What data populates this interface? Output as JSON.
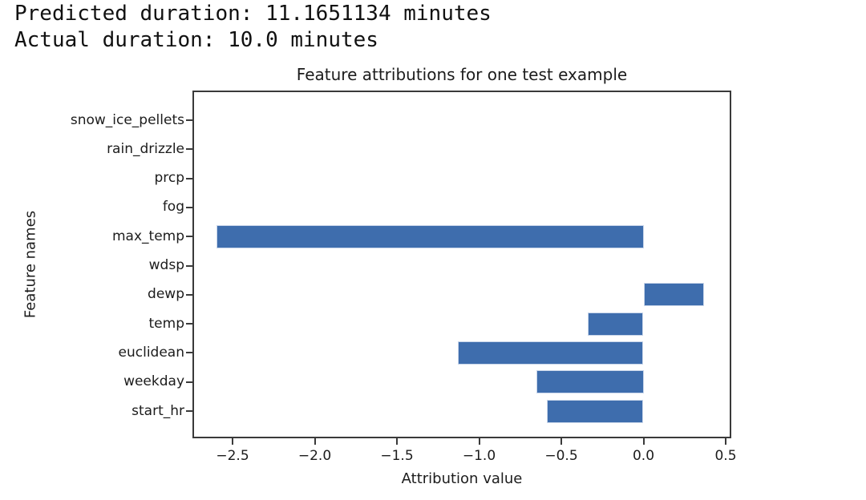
{
  "header": {
    "line1": "Predicted duration: 11.1651134 minutes",
    "line2": "Actual duration: 10.0 minutes"
  },
  "chart_data": {
    "type": "bar",
    "orientation": "horizontal",
    "title": "Feature attributions for one test example",
    "xlabel": "Attribution value",
    "ylabel": "Feature names",
    "categories_top_to_bottom": [
      "snow_ice_pellets",
      "rain_drizzle",
      "prcp",
      "fog",
      "max_temp",
      "wdsp",
      "dewp",
      "temp",
      "euclidean",
      "weekday",
      "start_hr"
    ],
    "values": [
      0,
      0,
      0,
      0,
      -2.6,
      0,
      0.37,
      -0.34,
      -1.13,
      -0.65,
      -0.59
    ],
    "x_ticks": [
      -2.5,
      -2.0,
      -1.5,
      -1.0,
      -0.5,
      0.0,
      0.5
    ],
    "x_tick_labels": [
      "−2.5",
      "−2.0",
      "−1.5",
      "−1.0",
      "−0.5",
      "0.0",
      "0.5"
    ],
    "xlim": [
      -2.74,
      0.53
    ],
    "grid": false,
    "legend": "none",
    "bar_color": "#3E6DAD",
    "bar_edge_color": "#C9D6EA",
    "spine_color": "#3A3A3A",
    "text_color": "#1C1C1C"
  }
}
